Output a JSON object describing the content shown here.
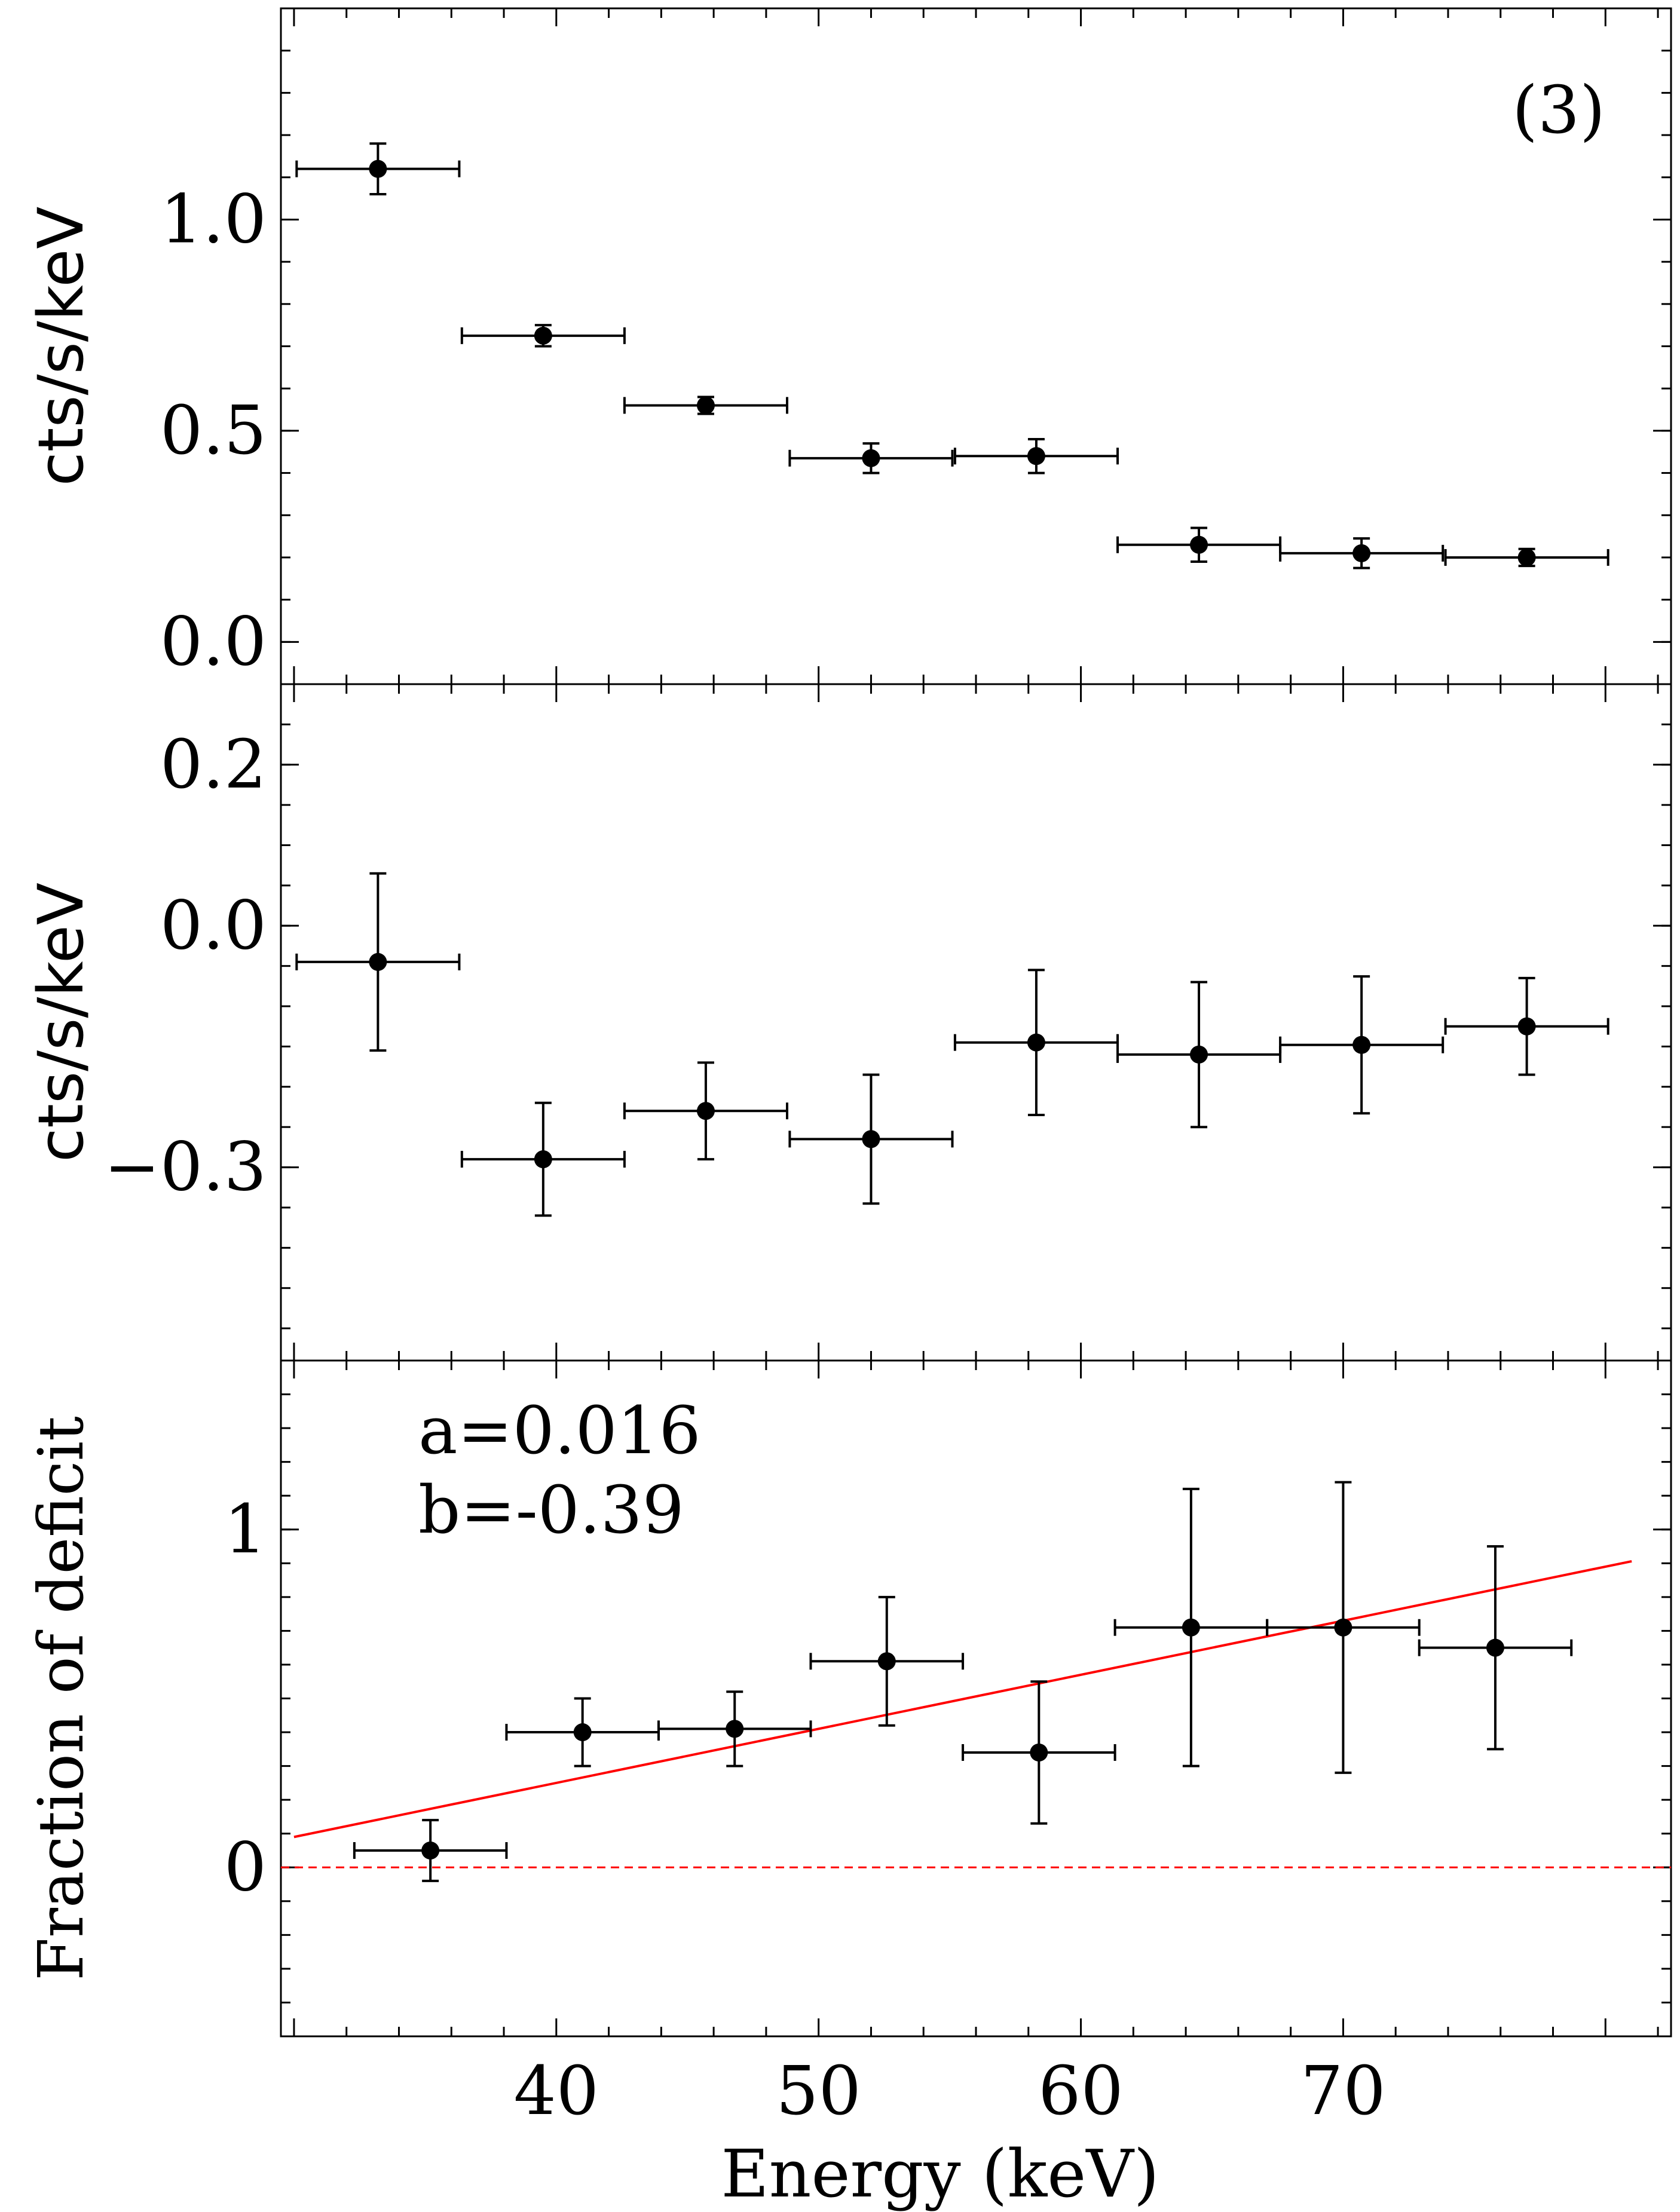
{
  "chart_data": {
    "type": "scatter",
    "layout": "three vertically stacked panels sharing the x axis",
    "xlabel": "Energy (keV)",
    "xlim": [
      29.5,
      82.5
    ],
    "xticks": [
      40,
      50,
      60,
      70
    ],
    "xtick_labels": [
      "40",
      "50",
      "60",
      "70"
    ],
    "panels": [
      {
        "id": "top",
        "ylabel": "cts/s/keV",
        "ylim": [
          -0.1,
          1.5
        ],
        "yticks": [
          0.0,
          0.5,
          1.0
        ],
        "ytick_labels": [
          "0.0",
          "0.5",
          "1.0"
        ],
        "annotation": "(3)",
        "series": [
          {
            "name": "spectrum",
            "x": [
              33.2,
              39.5,
              45.7,
              52.0,
              58.3,
              64.5,
              70.7,
              77.0
            ],
            "xerr": [
              3.1,
              3.1,
              3.1,
              3.1,
              3.1,
              3.1,
              3.1,
              3.1
            ],
            "y": [
              1.12,
              0.725,
              0.56,
              0.435,
              0.44,
              0.23,
              0.21,
              0.2
            ],
            "yerr": [
              0.06,
              0.025,
              0.02,
              0.035,
              0.04,
              0.04,
              0.035,
              0.02
            ]
          }
        ]
      },
      {
        "id": "middle",
        "ylabel": "cts/s/keV",
        "ylim": [
          -0.54,
          0.3
        ],
        "yticks": [
          -0.3,
          0.0,
          0.2
        ],
        "ytick_labels": [
          "−0.3",
          "0.0",
          "0.2"
        ],
        "series": [
          {
            "name": "residual",
            "x": [
              33.2,
              39.5,
              45.7,
              52.0,
              58.3,
              64.5,
              70.7,
              77.0
            ],
            "xerr": [
              3.1,
              3.1,
              3.1,
              3.1,
              3.1,
              3.1,
              3.1,
              3.1
            ],
            "y": [
              -0.045,
              -0.29,
              -0.23,
              -0.265,
              -0.145,
              -0.16,
              -0.148,
              -0.125
            ],
            "yerr": [
              0.11,
              0.07,
              0.06,
              0.08,
              0.09,
              0.09,
              0.085,
              0.06
            ]
          }
        ]
      },
      {
        "id": "bottom",
        "ylabel": "Fraction of deficit",
        "ylim": [
          -0.5,
          1.5
        ],
        "yticks": [
          0,
          1
        ],
        "ytick_labels": [
          "0",
          "1"
        ],
        "annotation_lines": [
          "a=0.016",
          "b=-0.39"
        ],
        "series": [
          {
            "name": "deficit fraction",
            "x": [
              35.2,
              41.0,
              46.8,
              52.6,
              58.4,
              64.2,
              70.0,
              75.8
            ],
            "xerr": [
              2.9,
              2.9,
              2.9,
              2.9,
              2.9,
              2.9,
              2.9,
              2.9
            ],
            "y": [
              0.05,
              0.4,
              0.41,
              0.61,
              0.34,
              0.71,
              0.71,
              0.65
            ],
            "yerr": [
              0.09,
              0.1,
              0.11,
              0.19,
              0.21,
              0.41,
              0.43,
              0.3
            ]
          }
        ],
        "fit_line": {
          "a": 0.016,
          "b": -0.39,
          "x_range": [
            30.0,
            81.0
          ],
          "color": "#ff0000",
          "style": "solid"
        },
        "reference_line": {
          "y": 0,
          "color": "#ff0000",
          "style": "dashed"
        }
      }
    ]
  }
}
